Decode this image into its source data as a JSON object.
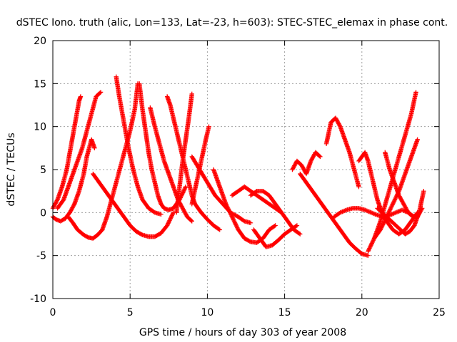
{
  "chart_data": {
    "type": "scatter",
    "title": "dSTEC Iono. truth (alic, Lon=133, Lat=-23, h=603): STEC-STEC_elemax in phase cont.",
    "xlabel": "GPS time / hours of day 303 of year 2008",
    "ylabel": "dSTEC  / TECUs",
    "xlim": [
      0,
      25
    ],
    "ylim": [
      -10,
      20
    ],
    "xticks": [
      "0",
      "5",
      "10",
      "15",
      "20",
      "25"
    ],
    "yticks": [
      "-10",
      "-5",
      "0",
      "5",
      "10",
      "15",
      "20"
    ],
    "grid": true,
    "legend": "none",
    "marker": "plus",
    "color": "#ff0000",
    "series": [
      {
        "x": [
          0.0,
          0.3,
          0.6,
          0.9,
          1.1,
          1.3,
          1.5,
          1.7,
          1.8
        ],
        "y": [
          0.5,
          1.5,
          3.0,
          5.0,
          7.0,
          9.0,
          11.0,
          13.0,
          13.5
        ]
      },
      {
        "x": [
          0.0,
          0.2,
          0.5,
          0.8,
          1.1,
          1.4,
          1.7,
          2.0,
          2.2,
          2.5,
          2.7
        ],
        "y": [
          -0.5,
          -0.8,
          -1.0,
          -0.7,
          0.0,
          1.0,
          2.5,
          4.5,
          6.5,
          8.5,
          7.5
        ]
      },
      {
        "x": [
          1.0,
          1.3,
          1.6,
          2.0,
          2.3,
          2.6,
          2.9,
          3.2
        ],
        "y": [
          -0.5,
          -1.2,
          -2.0,
          -2.6,
          -2.9,
          -3.0,
          -2.6,
          -2.0
        ]
      },
      {
        "x": [
          3.2,
          3.5,
          3.8,
          4.1,
          4.4,
          4.7,
          5.0,
          5.3,
          5.5
        ],
        "y": [
          -2.0,
          -0.5,
          1.5,
          3.5,
          5.5,
          7.5,
          9.5,
          12.0,
          15.0
        ]
      },
      {
        "x": [
          0.3,
          0.7,
          1.1,
          1.5,
          1.9,
          2.2,
          2.5,
          2.8,
          3.1
        ],
        "y": [
          0.5,
          1.5,
          3.5,
          5.5,
          7.5,
          9.5,
          11.5,
          13.5,
          14.0
        ]
      },
      {
        "x": [
          4.1,
          4.3,
          4.6,
          4.9,
          5.2,
          5.5,
          5.8,
          6.2,
          6.6,
          7.0
        ],
        "y": [
          15.8,
          13.5,
          10.5,
          7.5,
          5.0,
          3.0,
          1.5,
          0.5,
          0.0,
          -0.2
        ]
      },
      {
        "x": [
          2.6,
          3.0,
          3.4,
          3.8,
          4.2,
          4.6,
          5.0,
          5.4,
          5.8,
          6.2,
          6.6,
          7.0,
          7.4,
          7.8
        ],
        "y": [
          4.5,
          3.5,
          2.5,
          1.5,
          0.5,
          -0.5,
          -1.5,
          -2.2,
          -2.6,
          -2.8,
          -2.8,
          -2.4,
          -1.5,
          0.0
        ]
      },
      {
        "x": [
          5.6,
          5.8,
          6.0,
          6.2,
          6.4,
          6.6,
          6.8,
          7.0,
          7.2,
          7.5,
          7.8,
          8.2,
          8.6
        ],
        "y": [
          15.0,
          12.0,
          9.5,
          7.0,
          5.0,
          3.5,
          2.0,
          1.0,
          0.5,
          0.3,
          0.5,
          1.5,
          3.0
        ]
      },
      {
        "x": [
          6.3,
          6.6,
          6.9,
          7.2,
          7.5,
          7.8,
          8.1,
          8.4,
          8.7,
          9.0
        ],
        "y": [
          12.2,
          10.0,
          8.0,
          6.0,
          4.5,
          3.0,
          1.5,
          0.5,
          -0.5,
          -1.0
        ]
      },
      {
        "x": [
          7.4,
          7.6,
          7.8,
          8.0,
          8.2,
          8.4,
          8.6,
          8.8,
          9.0,
          9.2,
          9.6,
          10.0,
          10.4,
          10.8
        ],
        "y": [
          13.5,
          12.5,
          11.0,
          9.5,
          8.0,
          6.5,
          5.0,
          3.5,
          2.0,
          1.0,
          0.0,
          -0.8,
          -1.5,
          -2.0
        ]
      },
      {
        "x": [
          8.0,
          8.2,
          8.4,
          8.6,
          8.8,
          9.0
        ],
        "y": [
          0.0,
          3.0,
          6.0,
          8.5,
          11.0,
          13.8
        ]
      },
      {
        "x": [
          9.0,
          9.3,
          9.6,
          9.9,
          10.1
        ],
        "y": [
          1.0,
          3.5,
          6.0,
          8.5,
          10.0
        ]
      },
      {
        "x": [
          9.0,
          9.5,
          10.0,
          10.5,
          11.0,
          11.5,
          12.0,
          12.4,
          12.8
        ],
        "y": [
          6.5,
          5.0,
          3.5,
          2.0,
          1.0,
          0.0,
          -0.5,
          -1.0,
          -1.2
        ]
      },
      {
        "x": [
          10.4,
          10.8,
          11.2,
          11.6,
          12.0,
          12.4,
          12.8,
          13.2,
          13.6,
          14.0,
          14.4
        ],
        "y": [
          5.0,
          3.0,
          1.0,
          -0.5,
          -2.0,
          -3.0,
          -3.4,
          -3.5,
          -3.0,
          -2.0,
          -1.5
        ]
      },
      {
        "x": [
          11.6,
          12.0,
          12.4,
          12.8,
          13.2,
          13.6,
          14.0,
          14.4,
          14.8
        ],
        "y": [
          2.0,
          2.5,
          3.0,
          2.5,
          2.0,
          1.5,
          1.0,
          0.5,
          0.0
        ]
      },
      {
        "x": [
          12.8,
          13.2,
          13.6,
          14.0,
          14.4,
          14.8,
          15.2,
          15.6,
          16.0
        ],
        "y": [
          2.0,
          2.5,
          2.5,
          2.0,
          1.0,
          0.0,
          -1.0,
          -2.0,
          -2.5
        ]
      },
      {
        "x": [
          13.0,
          13.4,
          13.8,
          14.2,
          14.6,
          15.0,
          15.4,
          15.8
        ],
        "y": [
          -2.0,
          -3.0,
          -4.0,
          -3.8,
          -3.2,
          -2.5,
          -2.0,
          -1.5
        ]
      },
      {
        "x": [
          15.5,
          15.8,
          16.1,
          16.4,
          16.7,
          17.0,
          17.3
        ],
        "y": [
          5.0,
          6.0,
          5.5,
          4.5,
          6.0,
          7.0,
          6.5
        ]
      },
      {
        "x": [
          16.0,
          16.4,
          16.8,
          17.2,
          17.6,
          18.0,
          18.4,
          18.8,
          19.2,
          19.6,
          20.0,
          20.4
        ],
        "y": [
          4.5,
          3.5,
          2.5,
          1.5,
          0.5,
          -0.5,
          -1.5,
          -2.5,
          -3.5,
          -4.2,
          -4.8,
          -5.0
        ]
      },
      {
        "x": [
          17.7,
          18.0,
          18.3,
          18.6,
          18.9,
          19.2,
          19.5,
          19.8
        ],
        "y": [
          8.0,
          10.5,
          11.0,
          10.0,
          8.5,
          7.0,
          5.0,
          3.0
        ]
      },
      {
        "x": [
          18.2,
          18.6,
          19.0,
          19.4,
          19.8,
          20.2,
          20.6,
          21.0,
          21.4,
          21.8,
          22.2,
          22.6,
          23.0,
          23.4
        ],
        "y": [
          -0.5,
          0.0,
          0.3,
          0.5,
          0.5,
          0.3,
          0.0,
          -0.3,
          -0.5,
          -0.3,
          0.0,
          0.3,
          0.0,
          -0.5
        ]
      },
      {
        "x": [
          19.8,
          20.0,
          20.2,
          20.4,
          20.6,
          20.8,
          21.0,
          21.2,
          21.4,
          21.6,
          21.8,
          22.0,
          22.4,
          22.8,
          23.2,
          23.6
        ],
        "y": [
          6.0,
          6.5,
          7.0,
          6.0,
          4.5,
          3.0,
          1.5,
          0.5,
          -0.5,
          -1.0,
          -1.5,
          -2.0,
          -2.5,
          -2.0,
          -1.0,
          0.0
        ]
      },
      {
        "x": [
          20.4,
          20.8,
          21.2,
          21.6,
          22.0,
          22.4,
          22.8,
          23.2,
          23.5
        ],
        "y": [
          -4.5,
          -3.0,
          -1.0,
          1.5,
          4.0,
          6.5,
          9.0,
          11.5,
          14.0
        ]
      },
      {
        "x": [
          20.8,
          21.2,
          21.6,
          22.0,
          22.4,
          22.8,
          23.2,
          23.6
        ],
        "y": [
          -3.0,
          -2.0,
          -0.5,
          1.0,
          2.5,
          4.5,
          6.5,
          8.5
        ]
      },
      {
        "x": [
          21.0,
          21.3,
          21.6,
          21.9,
          22.2,
          22.5,
          22.8,
          23.1,
          23.4,
          23.7,
          24.0
        ],
        "y": [
          0.5,
          0.0,
          -0.5,
          -1.0,
          -1.5,
          -2.0,
          -2.5,
          -2.2,
          -1.5,
          0.0,
          2.5
        ]
      },
      {
        "x": [
          21.5,
          21.8,
          22.1,
          22.4,
          22.7,
          23.0,
          23.3,
          23.6,
          23.9
        ],
        "y": [
          7.0,
          5.0,
          3.5,
          2.0,
          1.0,
          0.0,
          -0.5,
          -0.5,
          0.5
        ]
      }
    ]
  }
}
